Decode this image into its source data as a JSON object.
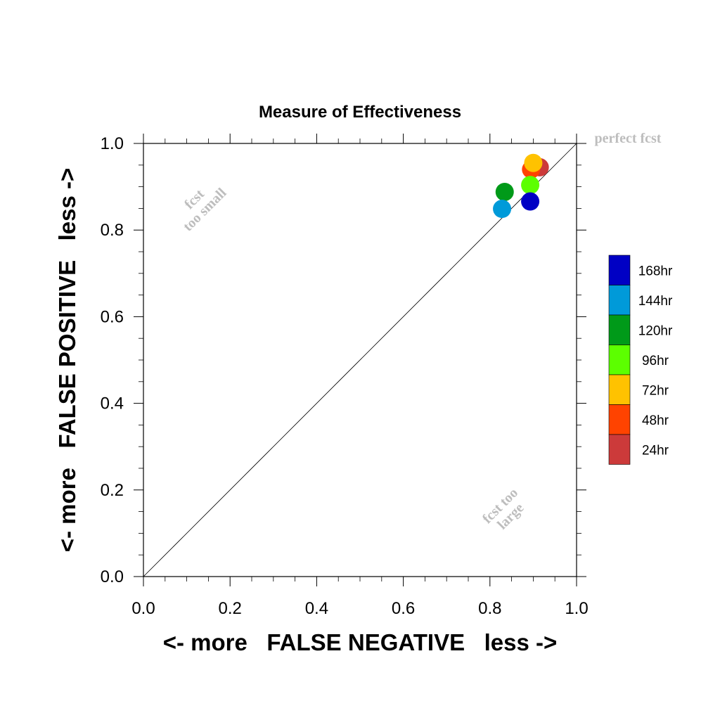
{
  "chart_data": {
    "type": "scatter",
    "title": "Measure of Effectiveness",
    "xlabel": "<- more   FALSE NEGATIVE   less ->",
    "ylabel": "<- more   FALSE POSITIVE   less ->",
    "xlim": [
      0,
      1
    ],
    "ylim": [
      0,
      1
    ],
    "xticks": [
      "0.0",
      "0.2",
      "0.4",
      "0.6",
      "0.8",
      "1.0"
    ],
    "yticks": [
      "0.0",
      "0.2",
      "0.4",
      "0.6",
      "0.8",
      "1.0"
    ],
    "grid": false,
    "legend_position": "right",
    "diagonal": true,
    "annotations": {
      "perfect": "perfect fcst",
      "small_line1": "fcst",
      "small_line2": "too small",
      "large_line1": "fcst too",
      "large_line2": "large"
    },
    "series": [
      {
        "name": "168hr",
        "color": "#0000c4",
        "x": 0.893,
        "y": 0.866
      },
      {
        "name": "144hr",
        "color": "#009ad9",
        "x": 0.828,
        "y": 0.849
      },
      {
        "name": "120hr",
        "color": "#009a19",
        "x": 0.834,
        "y": 0.888
      },
      {
        "name": "96hr",
        "color": "#5cff00",
        "x": 0.893,
        "y": 0.904
      },
      {
        "name": "72hr",
        "color": "#ffc200",
        "x": 0.9,
        "y": 0.955
      },
      {
        "name": "48hr",
        "color": "#ff4300",
        "x": 0.895,
        "y": 0.94
      },
      {
        "name": "24hr",
        "color": "#cc3a3a",
        "x": 0.915,
        "y": 0.945
      }
    ]
  }
}
